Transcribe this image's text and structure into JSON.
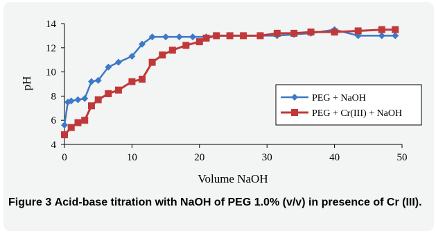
{
  "chart_data": {
    "type": "line",
    "xlabel": "Volume NaOH",
    "ylabel": "pH",
    "xlim": [
      0,
      50
    ],
    "ylim": [
      4,
      14
    ],
    "x_ticks": [
      "0",
      "10",
      "20",
      "30",
      "40",
      "50"
    ],
    "y_ticks": [
      "4",
      "6",
      "8",
      "10",
      "12",
      "14"
    ],
    "grid": false,
    "legend_position": "right-middle",
    "series": [
      {
        "name": "PEG + NaOH",
        "color": "#3c79c6",
        "marker": "diamond",
        "points": [
          [
            0,
            5.6
          ],
          [
            0.5,
            7.5
          ],
          [
            1,
            7.6
          ],
          [
            2,
            7.7
          ],
          [
            3,
            7.8
          ],
          [
            4,
            9.2
          ],
          [
            5,
            9.3
          ],
          [
            6.5,
            10.4
          ],
          [
            8,
            10.8
          ],
          [
            10,
            11.3
          ],
          [
            11.5,
            12.3
          ],
          [
            13,
            12.9
          ],
          [
            15,
            12.9
          ],
          [
            17,
            12.9
          ],
          [
            19,
            12.9
          ],
          [
            21,
            12.9
          ],
          [
            22.5,
            13.0
          ],
          [
            24.5,
            13.0
          ],
          [
            26.5,
            13.0
          ],
          [
            29,
            13.0
          ],
          [
            31.5,
            13.0
          ],
          [
            34,
            13.1
          ],
          [
            36.5,
            13.2
          ],
          [
            40,
            13.5
          ],
          [
            43.5,
            13.0
          ],
          [
            47,
            13.0
          ],
          [
            49,
            13.0
          ]
        ]
      },
      {
        "name": "PEG + Cr(III) + NaOH",
        "color": "#c0393a",
        "marker": "square",
        "points": [
          [
            0,
            4.8
          ],
          [
            1,
            5.4
          ],
          [
            2,
            5.8
          ],
          [
            3,
            6.0
          ],
          [
            4,
            7.2
          ],
          [
            5,
            7.7
          ],
          [
            6.5,
            8.2
          ],
          [
            8,
            8.5
          ],
          [
            10,
            9.2
          ],
          [
            11.5,
            9.4
          ],
          [
            13,
            10.8
          ],
          [
            14.5,
            11.4
          ],
          [
            16,
            11.8
          ],
          [
            18,
            12.2
          ],
          [
            20,
            12.5
          ],
          [
            21,
            12.8
          ],
          [
            22.5,
            13.0
          ],
          [
            24.5,
            13.0
          ],
          [
            26.5,
            13.0
          ],
          [
            29,
            13.0
          ],
          [
            31.5,
            13.2
          ],
          [
            34,
            13.2
          ],
          [
            36.5,
            13.3
          ],
          [
            40,
            13.3
          ],
          [
            43.5,
            13.4
          ],
          [
            47,
            13.5
          ],
          [
            49,
            13.5
          ]
        ]
      }
    ]
  },
  "caption": {
    "label": "Figure 3",
    "text": "Acid-base titration with NaOH of PEG 1.0% (v/v) in presence of Cr (III)."
  }
}
